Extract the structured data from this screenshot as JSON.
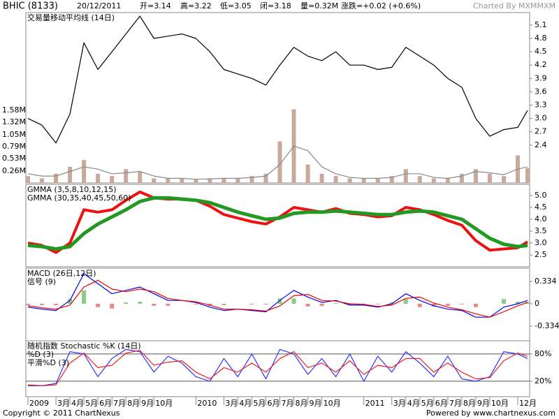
{
  "header": {
    "symbol": "BHIC (8133)",
    "date": "20/12/2011",
    "open": "开=3.14",
    "high": "高=3.22",
    "low": "低=3.05",
    "close": "闭=3.18",
    "volume": "量=0.32M",
    "change": "涨跌=+0.02 (+0.6%)",
    "credit": "Charted By MXMMXM"
  },
  "footer": {
    "copyright": "Copyright © 2011 ChartNexus",
    "powered": "Powered by www.chartnexus.com"
  },
  "chart_data": [
    {
      "type": "line",
      "xlim": [
        -0.15,
        35.85
      ],
      "x": [
        0,
        1,
        2,
        3,
        4,
        5,
        6,
        7,
        8,
        9,
        10,
        11,
        12,
        13,
        14,
        15,
        16,
        17,
        18,
        19,
        20,
        21,
        22,
        23,
        24,
        25,
        26,
        27,
        28,
        29,
        30,
        31,
        32,
        33,
        34,
        35,
        35.7
      ],
      "ylim": [
        1.55,
        5.38
      ],
      "yticks": [
        2.4,
        2.7,
        {
          "value": 3,
          "label": "3.0"
        },
        3.3,
        3.6,
        3.9,
        4.2,
        4.5,
        4.8,
        5.1
      ],
      "y2lim": [
        0,
        3.7
      ],
      "y2ticks": [
        {
          "value": 0.26,
          "label": "0.26M"
        },
        {
          "value": 0.53,
          "label": "0.53M"
        },
        {
          "value": 0.79,
          "label": "0.79M"
        },
        {
          "value": 1.05,
          "label": "1.05M"
        },
        {
          "value": 1.32,
          "label": "1.32M"
        },
        {
          "value": 1.58,
          "label": "1.58M"
        }
      ],
      "series": [
        {
          "type": "bar",
          "axis": "y2",
          "color": "#c9a99b",
          "values": [
            0.15,
            0.1,
            0.2,
            0.35,
            0.5,
            0.2,
            0.15,
            0.3,
            0.25,
            0.1,
            0.1,
            0.1,
            0.08,
            0.1,
            0.1,
            0.1,
            0.15,
            0.2,
            0.9,
            1.6,
            0.4,
            0.2,
            0.15,
            0.1,
            0.1,
            0.1,
            0.15,
            0.3,
            0.15,
            0.1,
            0.1,
            0.2,
            0.3,
            0.2,
            0.15,
            0.6,
            0.32
          ]
        },
        {
          "type": "line",
          "axis": "y2",
          "name": "交易量移动平均线 (14日)",
          "color": "#8a8a8a",
          "values": [
            0.2,
            0.15,
            0.15,
            0.25,
            0.35,
            0.3,
            0.2,
            0.22,
            0.25,
            0.15,
            0.1,
            0.1,
            0.08,
            0.09,
            0.1,
            0.1,
            0.12,
            0.15,
            0.4,
            0.8,
            0.7,
            0.35,
            0.2,
            0.12,
            0.1,
            0.1,
            0.12,
            0.2,
            0.2,
            0.12,
            0.1,
            0.15,
            0.25,
            0.22,
            0.18,
            0.3,
            0.35
          ]
        },
        {
          "type": "line",
          "color": "#000000",
          "values": [
            3.0,
            2.85,
            2.45,
            3.1,
            4.7,
            4.1,
            4.5,
            4.9,
            5.3,
            4.8,
            4.85,
            4.9,
            4.8,
            4.5,
            4.1,
            4.0,
            3.9,
            3.75,
            4.2,
            4.6,
            4.4,
            4.3,
            4.5,
            4.2,
            4.2,
            4.1,
            4.15,
            4.6,
            4.4,
            4.2,
            3.9,
            3.7,
            3.0,
            2.6,
            2.75,
            2.8,
            3.18
          ]
        }
      ]
    },
    {
      "type": "line",
      "xlim": [
        -0.15,
        35.85
      ],
      "x": [
        0,
        1,
        2,
        3,
        4,
        5,
        6,
        7,
        8,
        9,
        10,
        11,
        12,
        13,
        14,
        15,
        16,
        17,
        18,
        19,
        20,
        21,
        22,
        23,
        24,
        25,
        26,
        27,
        28,
        29,
        30,
        31,
        32,
        33,
        34,
        35,
        35.7
      ],
      "ylim": [
        2.0,
        5.47
      ],
      "yticks": [
        2.5,
        {
          "value": 3,
          "label": "3.0"
        },
        3.5,
        {
          "value": 4,
          "label": "4.0"
        },
        4.5,
        {
          "value": 5,
          "label": "5.0"
        }
      ],
      "series": [
        {
          "type": "line",
          "name": "GMMA (3,5,8,10,12,15)",
          "color": "#ee1111",
          "width": 4,
          "values": [
            3.0,
            2.9,
            2.6,
            3.0,
            4.4,
            4.3,
            4.4,
            4.8,
            5.15,
            4.9,
            4.85,
            4.85,
            4.8,
            4.55,
            4.2,
            4.05,
            3.9,
            3.8,
            4.1,
            4.5,
            4.4,
            4.3,
            4.45,
            4.25,
            4.2,
            4.1,
            4.15,
            4.5,
            4.4,
            4.2,
            3.95,
            3.75,
            3.1,
            2.7,
            2.75,
            2.8,
            3.05
          ]
        },
        {
          "type": "line",
          "name": "GMMA (30,35,40,45,50,60)",
          "color": "#229922",
          "width": 5,
          "values": [
            2.9,
            2.85,
            2.75,
            2.85,
            3.4,
            3.8,
            4.1,
            4.4,
            4.75,
            4.9,
            4.9,
            4.85,
            4.8,
            4.7,
            4.5,
            4.3,
            4.15,
            4.0,
            4.05,
            4.25,
            4.3,
            4.3,
            4.35,
            4.3,
            4.25,
            4.2,
            4.2,
            4.3,
            4.35,
            4.3,
            4.15,
            4.0,
            3.6,
            3.2,
            2.95,
            2.85,
            2.9
          ]
        }
      ]
    },
    {
      "type": "line",
      "xlim": [
        -0.15,
        35.85
      ],
      "x": [
        0,
        1,
        2,
        3,
        4,
        5,
        6,
        7,
        8,
        9,
        10,
        11,
        12,
        13,
        14,
        15,
        16,
        17,
        18,
        19,
        20,
        21,
        22,
        23,
        24,
        25,
        26,
        27,
        28,
        29,
        30,
        31,
        32,
        33,
        34,
        35,
        35.7
      ],
      "ylim": [
        -0.553,
        0.532
      ],
      "yticks": [
        -0.334,
        0,
        0.334
      ],
      "series": [
        {
          "type": "bar",
          "color": "#88cc88",
          "negative_color": "#ee8888",
          "values": [
            -0.02,
            -0.02,
            -0.02,
            0.07,
            0.2,
            -0.05,
            -0.07,
            0.02,
            0.03,
            -0.03,
            -0.03,
            0,
            -0.01,
            -0.03,
            -0.02,
            0,
            -0.01,
            -0.01,
            0.08,
            0.08,
            -0.04,
            -0.03,
            0.01,
            -0.02,
            -0.01,
            -0.01,
            0.02,
            0.07,
            -0.05,
            -0.04,
            -0.03,
            -0.01,
            -0.05,
            0,
            0.07,
            0.03,
            0.03
          ]
        },
        {
          "type": "line",
          "name": "MACD (26日,12日)",
          "color": "#0000ee",
          "values": [
            -0.05,
            -0.08,
            -0.1,
            0.05,
            0.45,
            0.3,
            0.15,
            0.2,
            0.25,
            0.15,
            0.05,
            0.05,
            0.02,
            -0.05,
            -0.1,
            -0.08,
            -0.1,
            -0.12,
            0.05,
            0.2,
            0.1,
            0.02,
            0.05,
            -0.02,
            -0.02,
            -0.05,
            0.0,
            0.15,
            0.05,
            -0.03,
            -0.08,
            -0.1,
            -0.2,
            -0.2,
            -0.05,
            0.0,
            0.05
          ]
        },
        {
          "type": "line",
          "name": "信号 (9)",
          "color": "#ee0000",
          "values": [
            -0.03,
            -0.06,
            -0.08,
            -0.02,
            0.25,
            0.35,
            0.22,
            0.18,
            0.22,
            0.18,
            0.08,
            0.05,
            0.03,
            -0.02,
            -0.08,
            -0.08,
            -0.09,
            -0.11,
            -0.03,
            0.12,
            0.14,
            0.05,
            0.04,
            0.0,
            -0.01,
            -0.04,
            -0.02,
            0.08,
            0.1,
            0.01,
            -0.05,
            -0.09,
            -0.15,
            -0.2,
            -0.12,
            -0.03,
            0.02
          ]
        }
      ]
    },
    {
      "type": "line",
      "title": "随机指数 Stochastic %K (14日)",
      "xlim": [
        -0.15,
        35.85
      ],
      "x": [
        0,
        1,
        2,
        3,
        4,
        5,
        6,
        7,
        8,
        9,
        10,
        11,
        12,
        13,
        14,
        15,
        16,
        17,
        18,
        19,
        20,
        21,
        22,
        23,
        24,
        25,
        26,
        27,
        28,
        29,
        30,
        31,
        32,
        33,
        34,
        35,
        35.7
      ],
      "ylim": [
        -14,
        109
      ],
      "yticks": [
        {
          "value": 20,
          "label": "20%"
        },
        {
          "value": 80,
          "label": "80%"
        }
      ],
      "grid": true,
      "xticks": [
        {
          "value": 0,
          "label": "2009"
        },
        {
          "value": 2,
          "label": "3月"
        },
        {
          "value": 3,
          "label": "4月"
        },
        {
          "value": 4,
          "label": "5月"
        },
        {
          "value": 5,
          "label": "6月"
        },
        {
          "value": 6,
          "label": "7月"
        },
        {
          "value": 7,
          "label": "8月"
        },
        {
          "value": 8,
          "label": "9月"
        },
        {
          "value": 9,
          "label": "10月"
        },
        {
          "value": 12,
          "label": "2010"
        },
        {
          "value": 14,
          "label": "3月"
        },
        {
          "value": 15,
          "label": "4月"
        },
        {
          "value": 16,
          "label": "5月"
        },
        {
          "value": 17,
          "label": "6月"
        },
        {
          "value": 18,
          "label": "7月"
        },
        {
          "value": 19,
          "label": "8月"
        },
        {
          "value": 20,
          "label": "9月"
        },
        {
          "value": 21,
          "label": "10月"
        },
        {
          "value": 24,
          "label": "2011"
        },
        {
          "value": 26,
          "label": "3月"
        },
        {
          "value": 27,
          "label": "4月"
        },
        {
          "value": 28,
          "label": "5月"
        },
        {
          "value": 29,
          "label": "6月"
        },
        {
          "value": 30,
          "label": "7月"
        },
        {
          "value": 31,
          "label": "8月"
        },
        {
          "value": 32,
          "label": "9月"
        },
        {
          "value": 33,
          "label": "10月"
        },
        {
          "value": 35,
          "label": "12月"
        }
      ],
      "series": [
        {
          "type": "line",
          "name": "%D (3)",
          "color": "#3333ff",
          "values": [
            10,
            10,
            15,
            85,
            80,
            30,
            70,
            90,
            85,
            40,
            75,
            60,
            30,
            20,
            70,
            30,
            80,
            25,
            90,
            80,
            35,
            70,
            30,
            80,
            20,
            75,
            40,
            85,
            60,
            30,
            75,
            25,
            20,
            30,
            85,
            80,
            70
          ]
        },
        {
          "type": "line",
          "name": "平滑%D (3)",
          "color": "#ee2222",
          "values": [
            12,
            10,
            12,
            60,
            82,
            50,
            55,
            82,
            88,
            55,
            62,
            65,
            40,
            25,
            50,
            40,
            60,
            40,
            70,
            85,
            50,
            60,
            40,
            65,
            35,
            55,
            50,
            70,
            70,
            40,
            60,
            40,
            25,
            28,
            65,
            82,
            75
          ]
        }
      ]
    }
  ]
}
